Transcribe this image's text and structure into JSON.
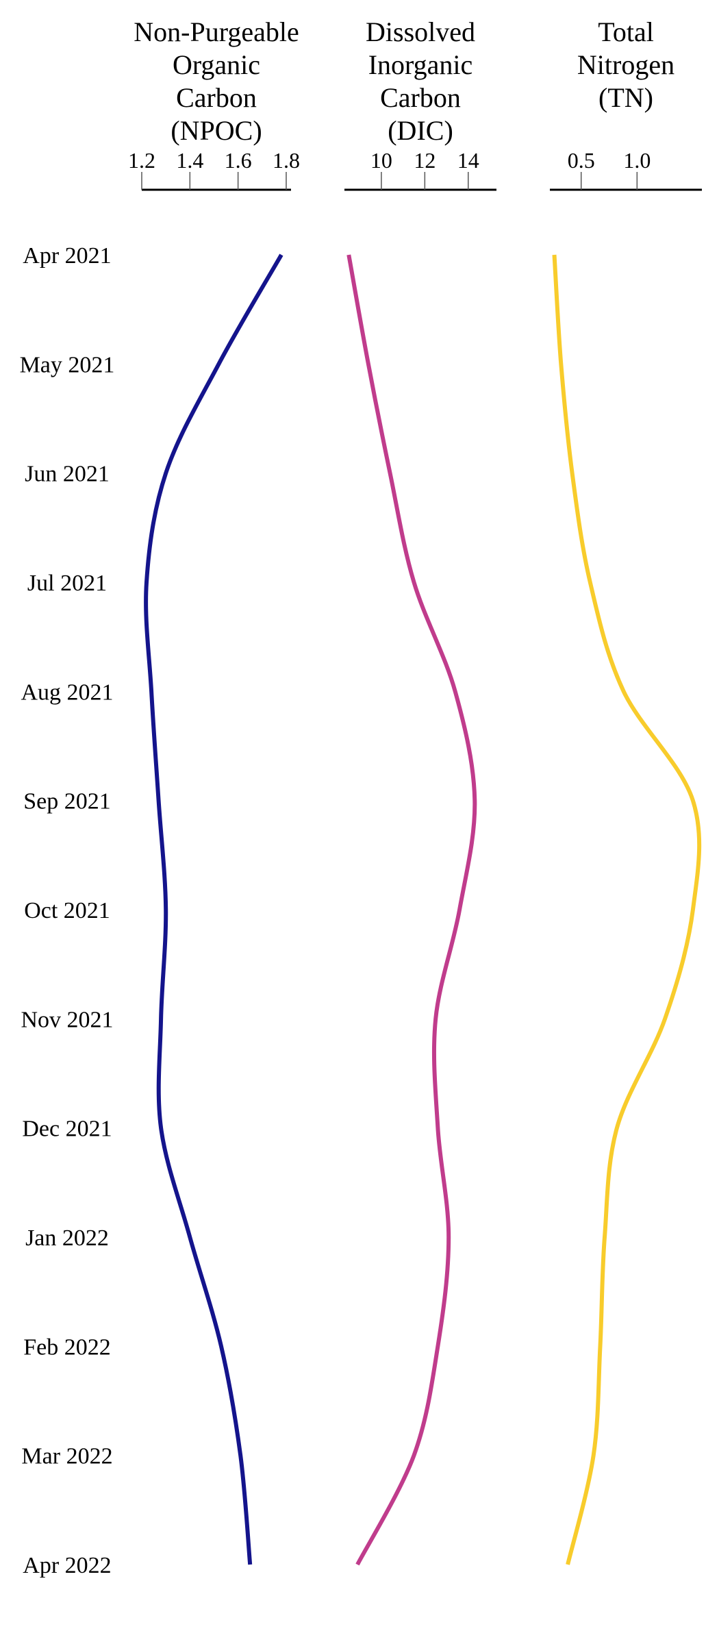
{
  "chart_data": {
    "type": "line",
    "orientation": "vertical-time",
    "dates": [
      "Apr 2021",
      "May 2021",
      "Jun 2021",
      "Jul 2021",
      "Aug 2021",
      "Sep 2021",
      "Oct 2021",
      "Nov 2021",
      "Dec 2021",
      "Jan 2022",
      "Feb 2022",
      "Mar 2022",
      "Apr 2022"
    ],
    "grid": false,
    "panels": [
      {
        "title": [
          "Non-Purgeable",
          "Organic",
          "Carbon",
          "(NPOC)"
        ],
        "ticks": [
          1.2,
          1.4,
          1.6,
          1.8
        ],
        "tick_labels": [
          "1.2",
          "1.4",
          "1.6",
          "1.8"
        ],
        "xlim": [
          1.2,
          1.82
        ],
        "color": "#14148c",
        "values": [
          1.78,
          1.52,
          1.3,
          1.22,
          1.24,
          1.27,
          1.3,
          1.28,
          1.28,
          1.4,
          1.53,
          1.61,
          1.65
        ]
      },
      {
        "title": [
          "Dissolved",
          "Inorganic",
          "Carbon",
          "(DIC)"
        ],
        "ticks": [
          10,
          12,
          14
        ],
        "tick_labels": [
          "10",
          "12",
          "14"
        ],
        "xlim": [
          8.3,
          15.3
        ],
        "color": "#c03c8c",
        "values": [
          8.5,
          9.4,
          10.4,
          11.5,
          13.4,
          14.3,
          13.6,
          12.5,
          12.6,
          13.1,
          12.6,
          11.5,
          8.9
        ]
      },
      {
        "title": [
          "Total",
          "Nitrogen",
          "(TN)"
        ],
        "ticks": [
          0.5,
          1.0
        ],
        "tick_labels": [
          "0.5",
          "1.0"
        ],
        "xlim": [
          0.22,
          1.58
        ],
        "color": "#f8cc2c",
        "values": [
          0.26,
          0.32,
          0.42,
          0.58,
          0.88,
          1.5,
          1.5,
          1.25,
          0.82,
          0.71,
          0.67,
          0.61,
          0.38
        ]
      }
    ]
  }
}
